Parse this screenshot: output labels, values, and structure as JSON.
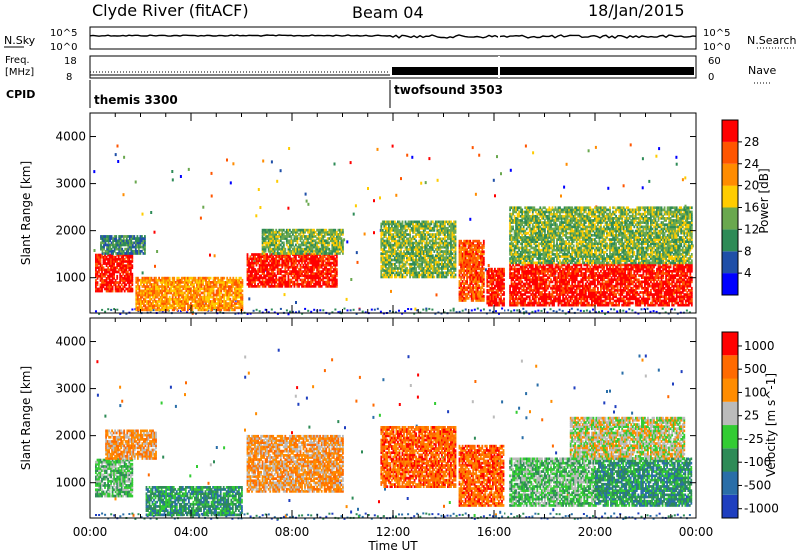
{
  "header": {
    "station": "Clyde River (fitACF)",
    "beam": "Beam 04",
    "date": "18/Jan/2015"
  },
  "top_panels": {
    "nsky_label": "N.Sky",
    "nsky_ticks": [
      "10^5",
      "10^0"
    ],
    "nsky_right_ticks": [
      "10^5",
      "10^0"
    ],
    "nsearch_label": "N.Search",
    "freq_label_1": "Freq.",
    "freq_label_2": "[MHz]",
    "freq_ticks": [
      "18",
      "8"
    ],
    "nave_ticks": [
      "60",
      "0"
    ],
    "nave_label": "Nave",
    "cpid_label": "CPID",
    "cpid_modes": [
      "themis 3300",
      "twofsound 3503"
    ]
  },
  "colors": {
    "power": [
      "#0000ff",
      "#1f4fa8",
      "#2e8b57",
      "#6aa84f",
      "#ffcc00",
      "#ff8c00",
      "#ff5500",
      "#ff0000"
    ],
    "velocity": [
      "#1f3fbf",
      "#2a6ea8",
      "#2e8b57",
      "#33cc33",
      "#bbbbbb",
      "#ff8c00",
      "#ff6a00",
      "#ff0000"
    ]
  },
  "chart_data": [
    {
      "type": "heatmap",
      "name": "power",
      "xlabel": "Time UT",
      "ylabel": "Slant Range [km]",
      "x_ticks": [
        "00:00",
        "04:00",
        "08:00",
        "12:00",
        "16:00",
        "20:00",
        "00:00"
      ],
      "xlim_hours": [
        0,
        24
      ],
      "ylim": [
        250,
        4500
      ],
      "y_ticks": [
        1000,
        2000,
        3000,
        4000
      ],
      "colorbar_label": "Power [dB]",
      "colorbar_ticks": [
        "4",
        "8",
        "12",
        "16",
        "20",
        "24",
        "28"
      ],
      "regions": [
        {
          "t0": 0.2,
          "t1": 1.7,
          "r0": 700,
          "r1": 1500,
          "level": 7
        },
        {
          "t0": 0.4,
          "t1": 2.2,
          "r0": 1500,
          "r1": 1900,
          "level": 2
        },
        {
          "t0": 1.8,
          "t1": 6.0,
          "r0": 300,
          "r1": 1000,
          "level": 5
        },
        {
          "t0": 6.2,
          "t1": 9.8,
          "r0": 800,
          "r1": 1500,
          "level": 7
        },
        {
          "t0": 6.8,
          "t1": 10.0,
          "r0": 1500,
          "r1": 2000,
          "level": 3
        },
        {
          "t0": 11.5,
          "t1": 14.5,
          "r0": 1000,
          "r1": 2200,
          "level": 3
        },
        {
          "t0": 14.6,
          "t1": 15.6,
          "r0": 500,
          "r1": 1800,
          "level": 6
        },
        {
          "t0": 15.7,
          "t1": 16.4,
          "r0": 400,
          "r1": 1200,
          "level": 7
        },
        {
          "t0": 16.6,
          "t1": 23.8,
          "r0": 400,
          "r1": 1300,
          "level": 7
        },
        {
          "t0": 16.6,
          "t1": 23.8,
          "r0": 1300,
          "r1": 2500,
          "level": 3
        }
      ]
    },
    {
      "type": "heatmap",
      "name": "velocity",
      "xlabel": "Time UT",
      "ylabel": "Slant Range [km]",
      "x_ticks": [
        "00:00",
        "04:00",
        "08:00",
        "12:00",
        "16:00",
        "20:00",
        "00:00"
      ],
      "xlim_hours": [
        0,
        24
      ],
      "ylim": [
        250,
        4500
      ],
      "y_ticks": [
        1000,
        2000,
        3000,
        4000
      ],
      "colorbar_label": "Velocity [m s^-1]",
      "colorbar_ticks": [
        "1000",
        "500",
        "100",
        "25",
        "-25",
        "-100",
        "-500",
        "-1000"
      ],
      "regions": [
        {
          "t0": 0.2,
          "t1": 1.7,
          "r0": 700,
          "r1": 1500,
          "level": 3
        },
        {
          "t0": 0.6,
          "t1": 2.6,
          "r0": 1500,
          "r1": 2100,
          "level": 5
        },
        {
          "t0": 2.2,
          "t1": 6.0,
          "r0": 300,
          "r1": 900,
          "level": 2
        },
        {
          "t0": 6.2,
          "t1": 10.0,
          "r0": 800,
          "r1": 2000,
          "level": 5
        },
        {
          "t0": 11.5,
          "t1": 14.5,
          "r0": 900,
          "r1": 2200,
          "level": 6
        },
        {
          "t0": 14.6,
          "t1": 16.4,
          "r0": 500,
          "r1": 1800,
          "level": 6
        },
        {
          "t0": 16.6,
          "t1": 20.0,
          "r0": 500,
          "r1": 1500,
          "level": 3
        },
        {
          "t0": 20.0,
          "t1": 23.8,
          "r0": 500,
          "r1": 1500,
          "level": 2
        },
        {
          "t0": 19.0,
          "t1": 23.5,
          "r0": 1500,
          "r1": 2400,
          "level": 4
        }
      ]
    }
  ]
}
